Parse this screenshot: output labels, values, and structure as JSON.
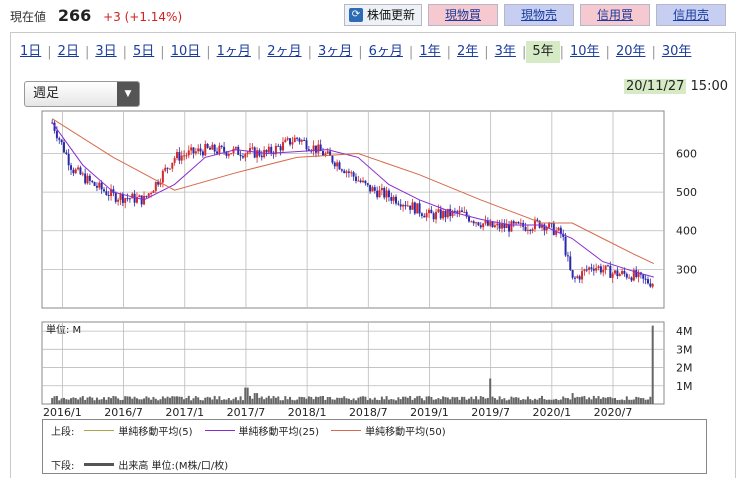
{
  "header": {
    "price_label": "現在値",
    "price_value": "266",
    "price_change": "+3 (+1.14%)",
    "buttons": {
      "refresh": "株価更新",
      "buy_cash": "現物買",
      "sell_cash": "現物売",
      "buy_margin": "信用買",
      "sell_margin": "信用売"
    }
  },
  "periods": [
    {
      "label": "1日"
    },
    {
      "label": "2日"
    },
    {
      "label": "3日"
    },
    {
      "label": "5日"
    },
    {
      "label": "10日"
    },
    {
      "label": "1ヶ月"
    },
    {
      "label": "2ヶ月"
    },
    {
      "label": "3ヶ月"
    },
    {
      "label": "6ヶ月"
    },
    {
      "label": "1年"
    },
    {
      "label": "2年"
    },
    {
      "label": "3年"
    },
    {
      "label": "5年",
      "active": true
    },
    {
      "label": "10年"
    },
    {
      "label": "20年"
    },
    {
      "label": "30年"
    }
  ],
  "interval_select": {
    "value": "週足"
  },
  "timestamp": {
    "date": "20/11/27",
    "time": "15:00"
  },
  "legend": {
    "upper_label": "上段:",
    "lower_label": "下段:",
    "ma5": "単純移動平均(5)",
    "ma25": "単純移動平均(25)",
    "ma50": "単純移動平均(50)",
    "volume": "出来高 単位:(M株/口/枚)"
  },
  "colors": {
    "up": "#d62a2a",
    "down": "#2a2aa8",
    "ma5": "#a9a64a",
    "ma25": "#8a2bd0",
    "ma50": "#d76a4a",
    "volume": "#666666",
    "grid": "#bbbbbb"
  },
  "chart_data": [
    {
      "type": "line",
      "panel": "price",
      "y_ticks": [
        300,
        400,
        500,
        600
      ],
      "ylim": [
        200,
        710
      ],
      "x_ticks": [
        "2016/1",
        "2016/7",
        "2017/1",
        "2017/7",
        "2018/1",
        "2018/7",
        "2019/1",
        "2019/7",
        "2020/1",
        "2020/7"
      ],
      "xlim": [
        "2015/11",
        "2020/12"
      ],
      "series": [
        {
          "name": "単純移動平均(5)",
          "points": [
            [
              "2015/12",
              680
            ],
            [
              "2016/2",
              560
            ],
            [
              "2016/4",
              520
            ],
            [
              "2016/6",
              490
            ],
            [
              "2016/9",
              480
            ],
            [
              "2016/12",
              590
            ],
            [
              "2017/3",
              610
            ],
            [
              "2017/6",
              605
            ],
            [
              "2017/9",
              600
            ],
            [
              "2017/12",
              640
            ],
            [
              "2018/2",
              610
            ],
            [
              "2018/4",
              575
            ],
            [
              "2018/7",
              510
            ],
            [
              "2018/10",
              480
            ],
            [
              "2019/1",
              440
            ],
            [
              "2019/4",
              445
            ],
            [
              "2019/7",
              410
            ],
            [
              "2019/10",
              410
            ],
            [
              "2019/12",
              420
            ],
            [
              "2020/2",
              390
            ],
            [
              "2020/3",
              270
            ],
            [
              "2020/5",
              310
            ],
            [
              "2020/7",
              290
            ],
            [
              "2020/9",
              285
            ],
            [
              "2020/10",
              270
            ],
            [
              "2020/11",
              266
            ]
          ]
        },
        {
          "name": "単純移動平均(25)",
          "points": [
            [
              "2015/12",
              680
            ],
            [
              "2016/3",
              570
            ],
            [
              "2016/6",
              500
            ],
            [
              "2016/9",
              480
            ],
            [
              "2016/12",
              520
            ],
            [
              "2017/3",
              590
            ],
            [
              "2017/6",
              610
            ],
            [
              "2017/9",
              600
            ],
            [
              "2017/12",
              605
            ],
            [
              "2018/3",
              610
            ],
            [
              "2018/6",
              590
            ],
            [
              "2018/9",
              520
            ],
            [
              "2018/12",
              480
            ],
            [
              "2019/3",
              450
            ],
            [
              "2019/6",
              430
            ],
            [
              "2019/9",
              415
            ],
            [
              "2019/12",
              415
            ],
            [
              "2020/3",
              380
            ],
            [
              "2020/6",
              320
            ],
            [
              "2020/9",
              295
            ],
            [
              "2020/11",
              280
            ]
          ]
        },
        {
          "name": "単純移動平均(50)",
          "points": [
            [
              "2015/12",
              690
            ],
            [
              "2016/6",
              590
            ],
            [
              "2016/12",
              505
            ],
            [
              "2017/6",
              550
            ],
            [
              "2017/12",
              590
            ],
            [
              "2018/6",
              600
            ],
            [
              "2018/12",
              545
            ],
            [
              "2019/6",
              480
            ],
            [
              "2019/12",
              420
            ],
            [
              "2020/3",
              420
            ],
            [
              "2020/6",
              380
            ],
            [
              "2020/9",
              340
            ],
            [
              "2020/11",
              315
            ]
          ]
        }
      ]
    },
    {
      "type": "bar",
      "panel": "volume",
      "unit_label": "単位: M",
      "y_ticks": [
        "1M",
        "2M",
        "3M",
        "4M"
      ],
      "ylim": [
        0,
        4.5
      ],
      "peaks": [
        {
          "x": "2017/7",
          "value": 0.9
        },
        {
          "x": "2017/8",
          "value": 0.6
        },
        {
          "x": "2019/7",
          "value": 1.4
        },
        {
          "x": "2020/3",
          "value": 0.6
        },
        {
          "x": "2020/11",
          "value": 4.3
        },
        {
          "x": "2020/12",
          "value": 3.0
        }
      ],
      "baseline": 0.2
    }
  ]
}
